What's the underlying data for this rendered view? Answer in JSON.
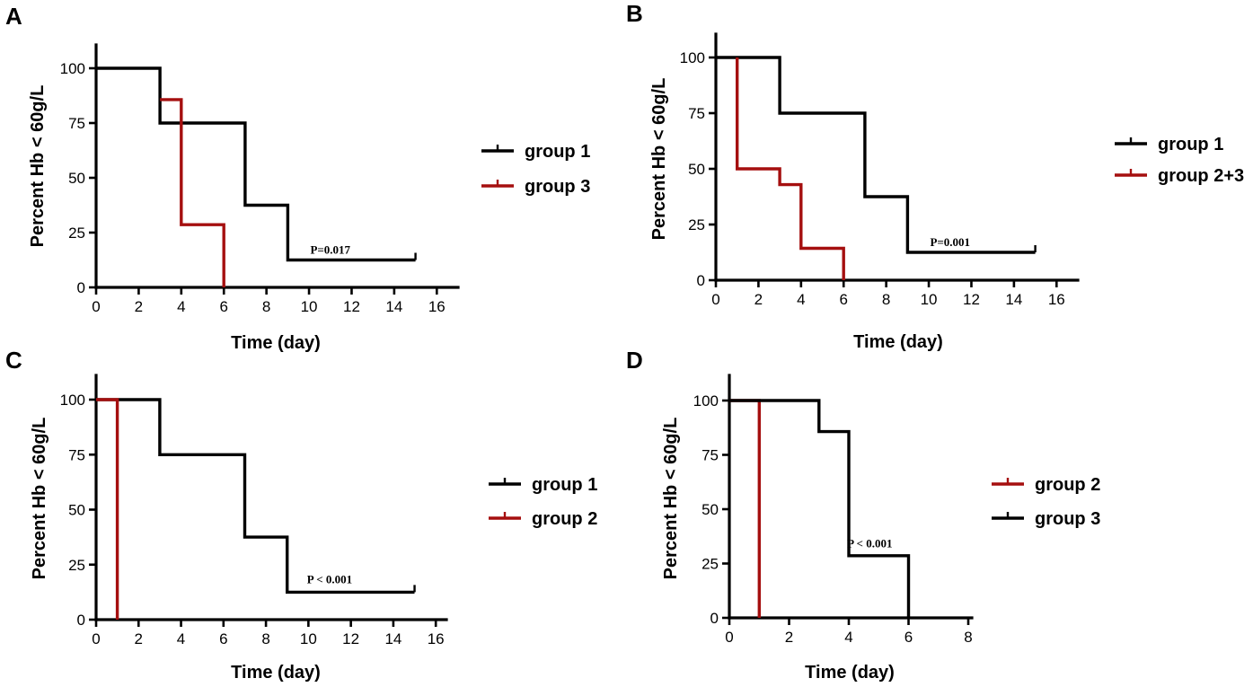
{
  "colors": {
    "black": "#000000",
    "red": "#a50f0f"
  },
  "chart_data": [
    {
      "panel": "A",
      "type": "line",
      "xlabel": "Time (day)",
      "ylabel": "Percent Hb < 60g/L",
      "xlim": [
        0,
        17
      ],
      "ylim": [
        0,
        110
      ],
      "xticks": [
        0,
        2,
        4,
        6,
        8,
        10,
        12,
        14,
        16
      ],
      "yticks": [
        0,
        25,
        50,
        75,
        100
      ],
      "annotation": {
        "text": "P=0.017",
        "x": 11,
        "y": 13
      },
      "legend_position": "right",
      "series": [
        {
          "name": "group 1",
          "color": "#000000",
          "x": [
            0,
            3,
            3,
            7,
            7,
            9,
            9,
            15
          ],
          "y": [
            100,
            100,
            75,
            75,
            37.5,
            37.5,
            12.5,
            12.5
          ]
        },
        {
          "name": "group 3",
          "color": "#a50f0f",
          "x": [
            3,
            4,
            4,
            6,
            6
          ],
          "y": [
            85.7,
            85.7,
            28.6,
            28.6,
            0
          ]
        }
      ]
    },
    {
      "panel": "B",
      "type": "line",
      "xlabel": "Time (day)",
      "ylabel": "Percent Hb < 60g/L",
      "xlim": [
        0,
        17
      ],
      "ylim": [
        0,
        110
      ],
      "xticks": [
        0,
        2,
        4,
        6,
        8,
        10,
        12,
        14,
        16
      ],
      "yticks": [
        0,
        25,
        50,
        75,
        100
      ],
      "annotation": {
        "text": "P=0.001",
        "x": 11,
        "y": 13
      },
      "legend_position": "right",
      "series": [
        {
          "name": "group 1",
          "color": "#000000",
          "x": [
            0,
            3,
            3,
            7,
            7,
            9,
            9,
            15
          ],
          "y": [
            100,
            100,
            75,
            75,
            37.5,
            37.5,
            12.5,
            12.5
          ]
        },
        {
          "name": "group 2+3",
          "color": "#a50f0f",
          "x": [
            1,
            1,
            3,
            3,
            4,
            4,
            6,
            6
          ],
          "y": [
            100,
            50,
            50,
            42.9,
            42.9,
            14.3,
            14.3,
            0
          ]
        }
      ]
    },
    {
      "panel": "C",
      "type": "line",
      "xlabel": "Time (day)",
      "ylabel": "Percent Hb < 60g/L",
      "xlim": [
        0,
        17
      ],
      "ylim": [
        0,
        110
      ],
      "xticks": [
        0,
        2,
        4,
        6,
        8,
        10,
        12,
        14,
        16
      ],
      "yticks": [
        0,
        25,
        50,
        75,
        100
      ],
      "annotation": {
        "text": "P < 0.001",
        "x": 11,
        "y": 14
      },
      "legend_position": "right",
      "series": [
        {
          "name": "group 1",
          "color": "#000000",
          "x": [
            0,
            3,
            3,
            7,
            7,
            9,
            9,
            15
          ],
          "y": [
            100,
            100,
            75,
            75,
            37.5,
            37.5,
            12.5,
            12.5
          ]
        },
        {
          "name": "group 2",
          "color": "#a50f0f",
          "x": [
            0,
            1,
            1
          ],
          "y": [
            100,
            100,
            0
          ]
        }
      ]
    },
    {
      "panel": "D",
      "type": "line",
      "xlabel": "Time (day)",
      "ylabel": "Percent Hb < 60g/L",
      "xlim": [
        0,
        8
      ],
      "ylim": [
        0,
        110
      ],
      "xticks": [
        0,
        2,
        4,
        6,
        8
      ],
      "yticks": [
        0,
        25,
        50,
        75,
        100
      ],
      "annotation": {
        "text": "P < 0.001",
        "x": 4.7,
        "y": 30
      },
      "legend_position": "right",
      "series": [
        {
          "name": "group 2",
          "color": "#a50f0f",
          "x": [
            0,
            1,
            1
          ],
          "y": [
            100,
            100,
            0
          ]
        },
        {
          "name": "group 3",
          "color": "#000000",
          "x": [
            0,
            3,
            3,
            4,
            4,
            6,
            6
          ],
          "y": [
            100,
            100,
            85.7,
            85.7,
            28.6,
            28.6,
            0
          ]
        }
      ]
    }
  ]
}
